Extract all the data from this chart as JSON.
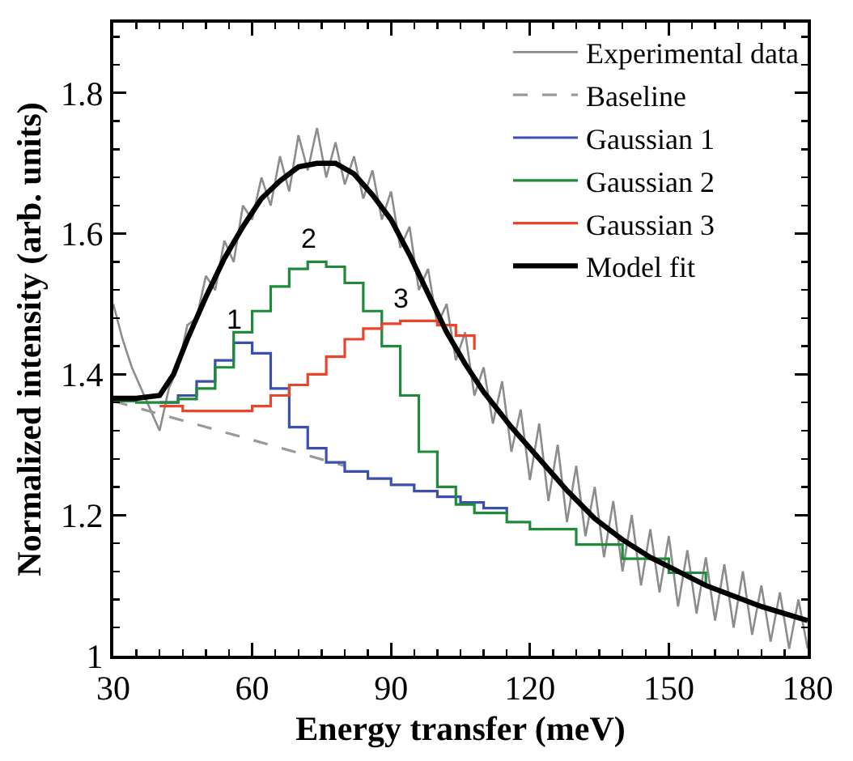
{
  "chart_data": {
    "type": "line",
    "xlabel": "Energy transfer (meV)",
    "ylabel": "Normalized intensity (arb. units)",
    "xlim": [
      30,
      180
    ],
    "xticks": [
      30,
      {
        "value": 35,
        "label": null
      },
      {
        "value": 40,
        "label": null
      },
      {
        "value": 45,
        "label": null
      },
      {
        "value": 50,
        "label": null
      },
      {
        "value": 55,
        "label": null
      },
      60,
      {
        "value": 65,
        "label": null
      },
      {
        "value": 70,
        "label": null
      },
      {
        "value": 75,
        "label": null
      },
      {
        "value": 80,
        "label": null
      },
      {
        "value": 85,
        "label": null
      },
      90,
      {
        "value": 95,
        "label": null
      },
      {
        "value": 100,
        "label": null
      },
      {
        "value": 105,
        "label": null
      },
      {
        "value": 110,
        "label": null
      },
      {
        "value": 115,
        "label": null
      },
      120,
      {
        "value": 125,
        "label": null
      },
      {
        "value": 130,
        "label": null
      },
      {
        "value": 135,
        "label": null
      },
      {
        "value": 140,
        "label": null
      },
      {
        "value": 145,
        "label": null
      },
      150,
      {
        "value": 155,
        "label": null
      },
      {
        "value": 160,
        "label": null
      },
      {
        "value": 165,
        "label": null
      },
      {
        "value": 170,
        "label": null
      },
      {
        "value": 175,
        "label": null
      },
      180
    ],
    "ylim": [
      1,
      1.9
    ],
    "yticks": [
      1,
      {
        "value": 1.04,
        "label": null
      },
      {
        "value": 1.08,
        "label": null
      },
      {
        "value": 1.12,
        "label": null
      },
      {
        "value": 1.16,
        "label": null
      },
      1.2,
      {
        "value": 1.24,
        "label": null
      },
      {
        "value": 1.28,
        "label": null
      },
      {
        "value": 1.32,
        "label": null
      },
      {
        "value": 1.36,
        "label": null
      },
      1.4,
      {
        "value": 1.44,
        "label": null
      },
      {
        "value": 1.48,
        "label": null
      },
      {
        "value": 1.52,
        "label": null
      },
      {
        "value": 1.56,
        "label": null
      },
      1.6,
      {
        "value": 1.64,
        "label": null
      },
      {
        "value": 1.68,
        "label": null
      },
      {
        "value": 1.72,
        "label": null
      },
      {
        "value": 1.76,
        "label": null
      },
      1.8,
      {
        "value": 1.84,
        "label": null
      },
      {
        "value": 1.88,
        "label": null
      }
    ],
    "grid": false,
    "legend": "top right",
    "marker": "none",
    "annotations": [
      {
        "text": "1",
        "x": 56,
        "y": 1.445
      },
      {
        "text": "2",
        "x": 72,
        "y": 1.56
      },
      {
        "text": "3",
        "x": 92,
        "y": 1.476
      }
    ],
    "series": [
      {
        "name": "Experimental data",
        "type": "line",
        "color": "#8c8c8c",
        "x": [
          30,
          32,
          34,
          36,
          38,
          40,
          42,
          44,
          46,
          48,
          50,
          52,
          54,
          56,
          58,
          60,
          62,
          64,
          66,
          68,
          70,
          72,
          74,
          76,
          78,
          80,
          82,
          84,
          86,
          88,
          90,
          92,
          94,
          96,
          98,
          100,
          102,
          104,
          106,
          108,
          110,
          112,
          114,
          116,
          118,
          120,
          122,
          124,
          126,
          128,
          130,
          132,
          134,
          136,
          138,
          140,
          142,
          144,
          146,
          148,
          150,
          152,
          154,
          156,
          158,
          160,
          162,
          164,
          166,
          168,
          170,
          172,
          174,
          176,
          178,
          180
        ],
        "values": [
          1.5,
          1.45,
          1.41,
          1.38,
          1.35,
          1.32,
          1.38,
          1.41,
          1.47,
          1.48,
          1.54,
          1.52,
          1.59,
          1.56,
          1.64,
          1.62,
          1.68,
          1.64,
          1.71,
          1.66,
          1.74,
          1.69,
          1.75,
          1.68,
          1.73,
          1.67,
          1.71,
          1.65,
          1.69,
          1.62,
          1.66,
          1.58,
          1.61,
          1.52,
          1.55,
          1.47,
          1.5,
          1.42,
          1.46,
          1.37,
          1.41,
          1.33,
          1.39,
          1.29,
          1.35,
          1.25,
          1.33,
          1.22,
          1.3,
          1.19,
          1.27,
          1.17,
          1.24,
          1.14,
          1.22,
          1.12,
          1.2,
          1.1,
          1.18,
          1.09,
          1.17,
          1.07,
          1.15,
          1.06,
          1.14,
          1.05,
          1.13,
          1.04,
          1.12,
          1.03,
          1.1,
          1.02,
          1.09,
          1.01,
          1.08,
          1.01
        ]
      },
      {
        "name": "Baseline",
        "type": "line",
        "line_style": "dashed",
        "color": "#999999",
        "x": [
          30,
          80
        ],
        "values": [
          1.362,
          1.27
        ]
      },
      {
        "name": "Gaussian 1",
        "type": "step",
        "color": "#3b4fb0",
        "x": [
          40,
          44,
          48,
          52,
          56,
          60,
          64,
          68,
          72,
          76,
          80,
          85,
          90,
          95,
          100,
          105,
          110,
          115
        ],
        "values": [
          1.36,
          1.37,
          1.39,
          1.42,
          1.445,
          1.43,
          1.38,
          1.325,
          1.295,
          1.275,
          1.262,
          1.252,
          1.243,
          1.234,
          1.226,
          1.218,
          1.21,
          1.202
        ]
      },
      {
        "name": "Gaussian 2",
        "type": "step",
        "color": "#1f8a3a",
        "x": [
          30,
          35,
          40,
          44,
          48,
          52,
          56,
          60,
          64,
          68,
          72,
          76,
          80,
          84,
          88,
          92,
          96,
          100,
          104,
          108,
          115,
          120,
          130,
          140,
          150,
          158
        ],
        "values": [
          1.362,
          1.36,
          1.36,
          1.365,
          1.38,
          1.41,
          1.46,
          1.49,
          1.525,
          1.55,
          1.56,
          1.553,
          1.53,
          1.49,
          1.44,
          1.37,
          1.29,
          1.24,
          1.215,
          1.203,
          1.19,
          1.18,
          1.158,
          1.138,
          1.118,
          1.102
        ]
      },
      {
        "name": "Gaussian 3",
        "type": "step",
        "color": "#e8452c",
        "x": [
          40,
          45,
          50,
          55,
          60,
          64,
          68,
          72,
          76,
          80,
          84,
          88,
          92,
          96,
          100,
          104,
          108
        ],
        "values": [
          1.355,
          1.348,
          1.348,
          1.348,
          1.355,
          1.37,
          1.385,
          1.4,
          1.425,
          1.45,
          1.465,
          1.472,
          1.476,
          1.476,
          1.47,
          1.455,
          1.435
        ]
      },
      {
        "name": "Model fit",
        "type": "line",
        "color": "#000000",
        "x": [
          30,
          35,
          40,
          43,
          46,
          50,
          54,
          58,
          62,
          66,
          70,
          74,
          78,
          82,
          86,
          90,
          94,
          98,
          102,
          106,
          110,
          116,
          122,
          128,
          134,
          140,
          146,
          152,
          158,
          164,
          170,
          176,
          180
        ],
        "values": [
          1.366,
          1.366,
          1.37,
          1.4,
          1.45,
          1.51,
          1.565,
          1.61,
          1.65,
          1.675,
          1.695,
          1.7,
          1.7,
          1.685,
          1.655,
          1.62,
          1.57,
          1.515,
          1.46,
          1.415,
          1.375,
          1.325,
          1.28,
          1.235,
          1.195,
          1.165,
          1.14,
          1.12,
          1.1,
          1.085,
          1.07,
          1.058,
          1.05
        ]
      }
    ]
  }
}
